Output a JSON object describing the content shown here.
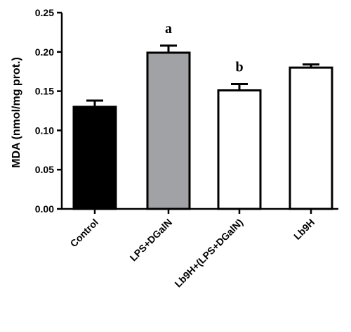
{
  "chart_data": {
    "type": "bar",
    "title": "",
    "xlabel": "",
    "ylabel": "MDA (nmol/mg prot.)",
    "ylim": [
      0,
      0.25
    ],
    "yticks": [
      "0.00",
      "0.05",
      "0.10",
      "0.15",
      "0.20",
      "0.25"
    ],
    "grid": false,
    "legend": "none",
    "categories": [
      "Control",
      "LPS+DGalN",
      "Lb9H+(LPS+DGalN)",
      "Lb9H"
    ],
    "values": [
      0.13,
      0.199,
      0.151,
      0.18
    ],
    "errors": [
      0.008,
      0.009,
      0.008,
      0.004
    ],
    "fill_colors": [
      "#000000",
      "#a0a2a5",
      "#ffffff",
      "#ffffff"
    ],
    "annotations": [
      "",
      "a",
      "b",
      ""
    ]
  }
}
